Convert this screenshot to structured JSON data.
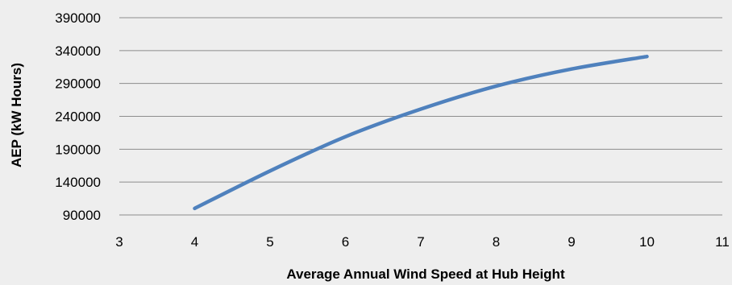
{
  "chart_data": {
    "type": "line",
    "title": "",
    "xlabel": "Average Annual Wind Speed at Hub Height",
    "ylabel": "AEP (kW Hours)",
    "xlim": [
      3,
      11
    ],
    "ylim": [
      90000,
      390000
    ],
    "x_ticks": [
      "3",
      "4",
      "5",
      "6",
      "7",
      "8",
      "9",
      "10",
      "11"
    ],
    "y_ticks": [
      "90000",
      "140000",
      "190000",
      "240000",
      "290000",
      "340000",
      "390000"
    ],
    "grid": true,
    "legend": "none",
    "series": [
      {
        "color": "#4f81bd",
        "x": [
          4,
          5,
          6,
          7,
          8,
          9,
          10
        ],
        "y": [
          100000,
          157000,
          209000,
          251000,
          286000,
          312000,
          331000
        ]
      }
    ]
  }
}
